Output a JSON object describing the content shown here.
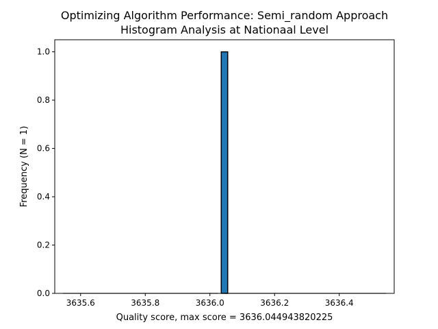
{
  "chart_data": {
    "type": "histogram",
    "title_lines": [
      "Optimizing Algorithm Performance: Semi_random Approach",
      "Histogram Analysis at Nationaal Level"
    ],
    "xlabel": "Quality score, max score = 3636.044943820225",
    "ylabel": "Frequency (N = 1)",
    "xlim": [
      3635.52,
      3636.57
    ],
    "ylim": [
      0,
      1.05
    ],
    "xticks": [
      3635.6,
      3635.8,
      3636.0,
      3636.2,
      3636.4
    ],
    "xtick_labels": [
      "3635.6",
      "3635.8",
      "3636.0",
      "3636.2",
      "3636.4"
    ],
    "yticks": [
      0.0,
      0.2,
      0.4,
      0.6,
      0.8,
      1.0
    ],
    "ytick_labels": [
      "0.0",
      "0.2",
      "0.4",
      "0.6",
      "0.8",
      "1.0"
    ],
    "bins": {
      "start": 3635.545,
      "end": 3636.545,
      "count": 50
    },
    "series": [
      {
        "bin_start": 3636.035,
        "bin_end": 3636.055,
        "value": 1.0
      }
    ],
    "grid": false,
    "legend": "none",
    "bar_color": "#1f77b4",
    "edge_color": "#000000"
  }
}
